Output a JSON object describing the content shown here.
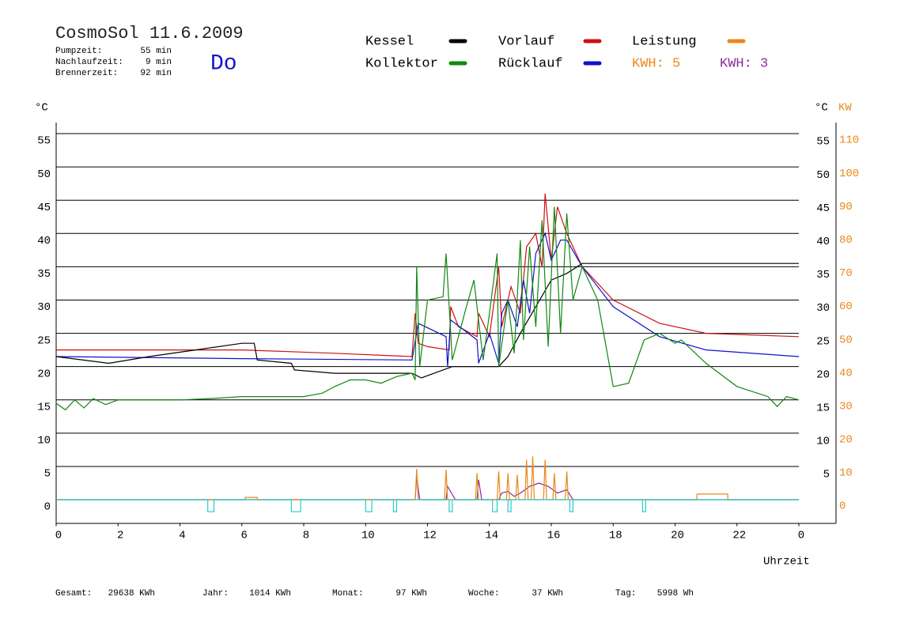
{
  "header": {
    "title": "CosmoSol 11.6.2009",
    "day": "Do",
    "info": [
      {
        "label": "Pumpzeit:",
        "value": "55 min"
      },
      {
        "label": "Nachlaufzeit:",
        "value": "9 min"
      },
      {
        "label": "Brennerzeit:",
        "value": "92 min"
      }
    ]
  },
  "chart_data": {
    "type": "line",
    "ylabel": "°C",
    "ylabel_right": "°C",
    "y2label": "KW",
    "xlabel": "Uhrzeit",
    "xlim": [
      0,
      24
    ],
    "xticks": [
      0,
      2,
      4,
      6,
      8,
      10,
      12,
      14,
      16,
      18,
      20,
      22,
      {
        "value": 24,
        "label": "0"
      }
    ],
    "ylim": [
      -3.5,
      56.5
    ],
    "yticks": [
      0,
      5,
      10,
      15,
      20,
      25,
      30,
      35,
      40,
      45,
      50,
      55
    ],
    "yticks_right": [
      5,
      10,
      15,
      20,
      25,
      30,
      35,
      40,
      45,
      50,
      55
    ],
    "y2lim": [
      -7,
      113
    ],
    "y2ticks": [
      0,
      10,
      20,
      30,
      40,
      50,
      60,
      70,
      80,
      90,
      100,
      110
    ],
    "grid": true,
    "series": [
      {
        "name": "Kessel",
        "color": "#000000",
        "x": [
          0,
          1.7,
          3,
          4.5,
          6,
          6.4,
          6.5,
          7.6,
          7.7,
          9,
          11.5,
          11.8,
          12.8,
          14.3,
          14.6,
          15,
          15.5,
          16,
          16.5,
          17,
          24
        ],
        "values": [
          21.5,
          20.5,
          21.5,
          22.5,
          23.5,
          23.5,
          21,
          20.5,
          19.5,
          19,
          19,
          18.3,
          20,
          20,
          21.5,
          25,
          29,
          33,
          34,
          35.5,
          35.5
        ]
      },
      {
        "name": "Kollektor",
        "color": "#118811",
        "x": [
          0,
          0.3,
          0.6,
          0.9,
          1.2,
          1.6,
          2,
          3,
          4,
          5,
          6,
          7,
          8,
          8.6,
          9,
          9.5,
          10,
          10.5,
          11,
          11.5,
          11.6,
          11.65,
          11.75,
          12,
          12.5,
          12.6,
          12.8,
          13.2,
          13.5,
          13.8,
          14,
          14.25,
          14.3,
          14.6,
          14.8,
          15,
          15.1,
          15.3,
          15.5,
          15.7,
          15.9,
          16.1,
          16.3,
          16.5,
          16.7,
          17,
          17.5,
          18,
          18.5,
          19,
          19.5,
          20,
          20.2,
          21,
          22,
          23,
          23.3,
          23.6,
          24
        ],
        "values": [
          14.5,
          13.5,
          15,
          13.8,
          15.2,
          14.3,
          15,
          15,
          15,
          15.2,
          15.5,
          15.5,
          15.5,
          16,
          17,
          18,
          18,
          17.5,
          18.5,
          19,
          18,
          35,
          20,
          30,
          30.5,
          37,
          21,
          28,
          33,
          21,
          28,
          37,
          20,
          30,
          22,
          39,
          24,
          38,
          26,
          42,
          23,
          44,
          25,
          43,
          30,
          35,
          30,
          17,
          17.5,
          24,
          25,
          23.5,
          24,
          20.5,
          17,
          15.5,
          14,
          15.5,
          15
        ]
      },
      {
        "name": "Vorlauf",
        "color": "#cc1111",
        "x": [
          0,
          6,
          9,
          11.5,
          11.6,
          11.7,
          12,
          12.7,
          12.75,
          13,
          13.6,
          13.65,
          14,
          14.3,
          14.4,
          14.7,
          15,
          15.2,
          15.5,
          15.7,
          15.8,
          16,
          16.2,
          16.5,
          16.7,
          17,
          18,
          19.5,
          21,
          24
        ],
        "values": [
          22.5,
          22.5,
          22,
          21.5,
          28,
          23.5,
          23,
          22.5,
          29,
          26,
          24.5,
          28,
          24.5,
          35,
          26,
          32,
          28,
          38,
          40,
          35,
          46,
          36,
          44,
          40,
          38,
          35,
          30,
          26.5,
          25,
          24.5
        ]
      },
      {
        "name": "Rücklauf",
        "color": "#1111cc",
        "x": [
          0,
          6,
          11.5,
          11.7,
          12.6,
          12.65,
          12.75,
          13.6,
          13.65,
          14,
          14.3,
          14.4,
          14.6,
          14.9,
          15.1,
          15.3,
          15.5,
          15.8,
          16,
          16.3,
          16.5,
          17,
          18,
          19.5,
          21,
          24
        ],
        "values": [
          21.5,
          21.2,
          21,
          26.5,
          24.5,
          20,
          27,
          24,
          20.5,
          25,
          20.5,
          28,
          30,
          26,
          33,
          28,
          37,
          40,
          36,
          39,
          39,
          35,
          29,
          24.5,
          22.5,
          21.5
        ]
      },
      {
        "name": "Leistung",
        "color": "#e8891a",
        "axis": "y2",
        "x": [
          0,
          6.1,
          6.11,
          6.5,
          6.51,
          11.6,
          11.65,
          11.7,
          12.55,
          12.6,
          12.65,
          13.55,
          13.6,
          13.65,
          14.25,
          14.3,
          14.35,
          14.55,
          14.6,
          14.65,
          14.85,
          14.9,
          14.95,
          15.15,
          15.2,
          15.25,
          15.35,
          15.4,
          15.45,
          15.75,
          15.8,
          15.85,
          16.05,
          16.1,
          16.15,
          16.45,
          16.5,
          16.55,
          20.7,
          20.71,
          21.7,
          21.71,
          24
        ],
        "values": [
          0,
          0,
          0.7,
          0.7,
          0,
          0,
          9.3,
          0,
          0,
          9,
          0,
          0,
          8,
          0,
          0,
          8.5,
          0,
          0,
          8,
          0,
          0,
          7.5,
          0,
          0,
          12,
          0,
          0,
          13,
          0,
          0,
          12,
          0,
          0,
          8,
          0,
          0,
          8.5,
          0,
          0,
          1.7,
          1.7,
          0,
          0
        ]
      },
      {
        "color": "#8a2a9a",
        "axis": "y2",
        "x": [
          0,
          11.6,
          11.65,
          11.75,
          12.6,
          12.65,
          12.9,
          13.6,
          13.65,
          13.75,
          14.3,
          14.4,
          14.6,
          14.8,
          15,
          15.3,
          15.6,
          15.9,
          16.2,
          16.5,
          16.7,
          24
        ],
        "values": [
          0,
          0,
          7,
          0,
          0,
          4,
          0,
          0,
          6,
          0,
          0,
          2,
          2.5,
          1,
          2,
          4,
          5,
          4,
          2,
          3,
          0,
          0
        ]
      },
      {
        "color": "#22cccc",
        "x": [
          0,
          4.9,
          4.9,
          5.1,
          5.1,
          7.6,
          7.6,
          7.9,
          7.9,
          10,
          10,
          10.2,
          10.2,
          10.9,
          10.9,
          11,
          11,
          12.7,
          12.7,
          12.8,
          12.8,
          14.1,
          14.1,
          14.25,
          14.25,
          14.6,
          14.6,
          14.7,
          14.7,
          16.6,
          16.6,
          16.7,
          16.7,
          18.95,
          18.95,
          19.05,
          19.05,
          24
        ],
        "values": [
          0,
          0,
          -1.8,
          -1.8,
          0,
          0,
          -1.8,
          -1.8,
          0,
          0,
          -1.8,
          -1.8,
          0,
          0,
          -1.8,
          -1.8,
          0,
          0,
          -1.8,
          -1.8,
          0,
          0,
          -1.8,
          -1.8,
          0,
          0,
          -1.8,
          -1.8,
          0,
          0,
          -1.8,
          -1.8,
          0,
          0,
          -1.8,
          -1.8,
          0,
          0
        ]
      }
    ],
    "kwh": [
      {
        "label": "KWH: 5",
        "color": "#e8891a"
      },
      {
        "label": "KWH: 3",
        "color": "#8a2a9a"
      }
    ]
  },
  "footer": [
    {
      "label": "Gesamt:",
      "value": "29638 KWh"
    },
    {
      "label": "Jahr:",
      "value": "1014 KWh"
    },
    {
      "label": "Monat:",
      "value": "97 KWh"
    },
    {
      "label": "Woche:",
      "value": "37 KWh"
    },
    {
      "label": "Tag:",
      "value": "5998 Wh"
    }
  ]
}
